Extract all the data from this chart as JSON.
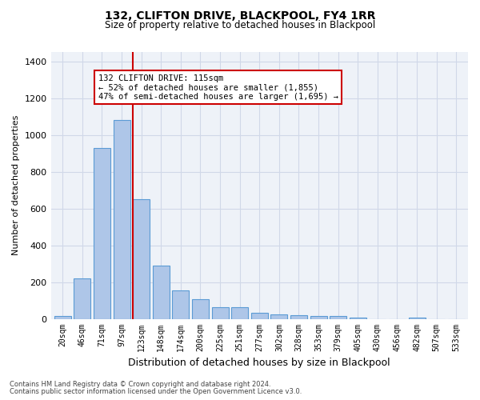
{
  "title": "132, CLIFTON DRIVE, BLACKPOOL, FY4 1RR",
  "subtitle": "Size of property relative to detached houses in Blackpool",
  "xlabel": "Distribution of detached houses by size in Blackpool",
  "ylabel": "Number of detached properties",
  "categories": [
    "20sqm",
    "46sqm",
    "71sqm",
    "97sqm",
    "123sqm",
    "148sqm",
    "174sqm",
    "200sqm",
    "225sqm",
    "251sqm",
    "277sqm",
    "302sqm",
    "328sqm",
    "353sqm",
    "379sqm",
    "405sqm",
    "430sqm",
    "456sqm",
    "482sqm",
    "507sqm",
    "533sqm"
  ],
  "values": [
    15,
    220,
    930,
    1080,
    650,
    290,
    155,
    105,
    65,
    65,
    35,
    25,
    20,
    15,
    15,
    5,
    0,
    0,
    5,
    0,
    0
  ],
  "bar_color": "#aec6e8",
  "bar_edge_color": "#5b9bd5",
  "bar_edge_width": 0.8,
  "vline_color": "#cc0000",
  "annotation_text": "132 CLIFTON DRIVE: 115sqm\n← 52% of detached houses are smaller (1,855)\n47% of semi-detached houses are larger (1,695) →",
  "annotation_box_color": "#ffffff",
  "annotation_border_color": "#cc0000",
  "ylim": [
    0,
    1450
  ],
  "yticks": [
    0,
    200,
    400,
    600,
    800,
    1000,
    1200,
    1400
  ],
  "grid_color": "#d0d8e8",
  "background_color": "#eef2f8",
  "footer1": "Contains HM Land Registry data © Crown copyright and database right 2024.",
  "footer2": "Contains public sector information licensed under the Open Government Licence v3.0."
}
